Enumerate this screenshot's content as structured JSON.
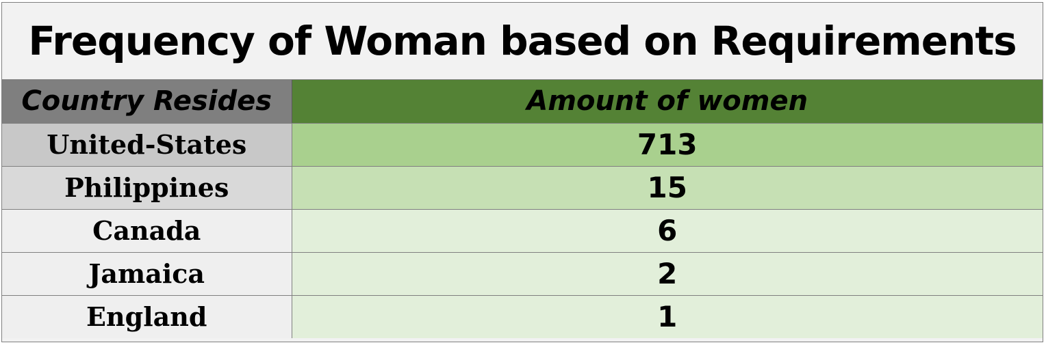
{
  "colors": {
    "title_bg": "#f2f2f2",
    "header_country_bg": "#7f7f7f",
    "header_amount_bg": "#548235",
    "row_country_bgs": [
      "#c8c8c8",
      "#d9d9d9",
      "#efefef",
      "#efefef",
      "#efefef"
    ],
    "row_amount_bgs": [
      "#a9d08e",
      "#c6e0b4",
      "#e2efda",
      "#e2efda",
      "#e2efda"
    ]
  },
  "chart_data": {
    "type": "table",
    "title": "Frequency of Woman based on Requirements",
    "columns": [
      "Country Resides",
      "Amount of women"
    ],
    "rows": [
      {
        "country": "United-States",
        "amount": "713"
      },
      {
        "country": "Philippines",
        "amount": "15"
      },
      {
        "country": "Canada",
        "amount": "6"
      },
      {
        "country": "Jamaica",
        "amount": "2"
      },
      {
        "country": "England",
        "amount": "1"
      }
    ]
  }
}
